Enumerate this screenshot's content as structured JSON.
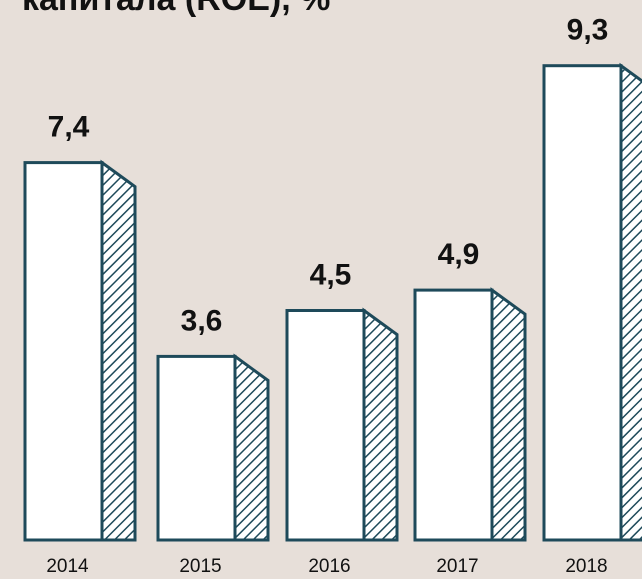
{
  "chart_data": {
    "type": "bar",
    "title": "капитала (ROE), %",
    "categories": [
      "2014",
      "2015",
      "2016",
      "2017",
      "2018"
    ],
    "values": [
      7.4,
      3.6,
      4.5,
      4.9,
      9.3
    ],
    "value_labels": [
      "7,4",
      "3,6",
      "4,5",
      "4,9",
      "9,3"
    ],
    "color": "#1e4a5a"
  }
}
